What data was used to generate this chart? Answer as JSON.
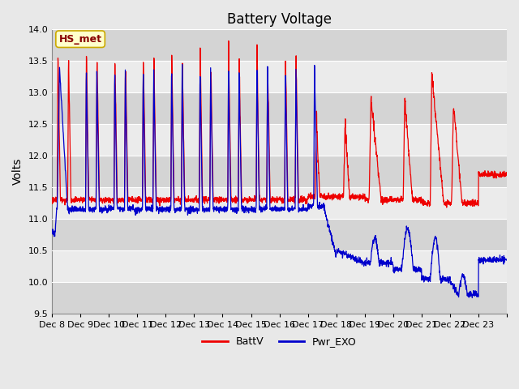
{
  "title": "Battery Voltage",
  "ylabel": "Volts",
  "ylim": [
    9.5,
    14.0
  ],
  "yticks": [
    9.5,
    10.0,
    10.5,
    11.0,
    11.5,
    12.0,
    12.5,
    13.0,
    13.5,
    14.0
  ],
  "xlabels": [
    "Dec 8",
    "Dec 9",
    "Dec 10",
    "Dec 11",
    "Dec 12",
    "Dec 13",
    "Dec 14",
    "Dec 15",
    "Dec 16",
    "Dec 17",
    "Dec 18",
    "Dec 19",
    "Dec 20",
    "Dec 21",
    "Dec 22",
    "Dec 23"
  ],
  "battv_color": "#ee0000",
  "pwr_exo_color": "#0000cc",
  "background_color": "#e8e8e8",
  "band_light": "#ebebeb",
  "band_dark": "#d8d8d8",
  "legend_label1": "BattV",
  "legend_label2": "Pwr_EXO",
  "annotation_text": "HS_met",
  "annotation_bg": "#ffffcc",
  "annotation_border": "#ccaa00",
  "title_fontsize": 12,
  "label_fontsize": 10,
  "tick_fontsize": 8
}
